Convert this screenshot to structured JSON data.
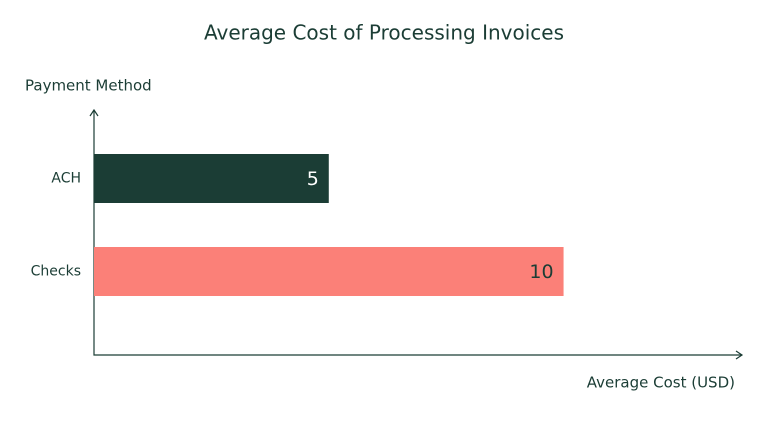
{
  "chart_data": {
    "type": "barh",
    "title": "Average Cost of Processing Invoices",
    "y_label": "Payment Method",
    "x_label": "Average Cost (USD)",
    "categories": [
      "ACH",
      "Checks"
    ],
    "values": [
      5,
      10
    ],
    "colors": [
      "#1b3d35",
      "#fb8078"
    ],
    "value_label_colors": [
      "#ffffff",
      "#1b3d35"
    ],
    "xlim": [
      0,
      13.8
    ]
  }
}
